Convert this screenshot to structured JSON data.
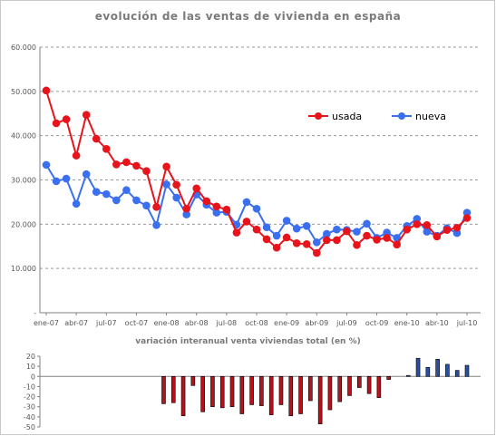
{
  "chart_data": [
    {
      "type": "line",
      "title": "evolución de las ventas de vivienda en españa",
      "xlabel": "",
      "ylabel": "",
      "ylim": [
        0,
        60000
      ],
      "ytick_values": [
        0,
        10000,
        20000,
        30000,
        40000,
        50000,
        60000
      ],
      "ytick_labels": [
        "-",
        "10.000",
        "20.000",
        "30.000",
        "40.000",
        "50.000",
        "60.000"
      ],
      "x_tick_labels": [
        "ene-07",
        "abr-07",
        "jul-07",
        "oct-07",
        "ene-08",
        "abr-08",
        "jul-08",
        "oct-08",
        "ene-09",
        "abr-09",
        "jul-09",
        "oct-09",
        "ene-10",
        "abr-10",
        "jul-10"
      ],
      "x_tick_every": 3,
      "grid": "horizontal-dashed",
      "legend_placement": "right",
      "colors": {
        "usada": "#e8141b",
        "nueva": "#3a6ff0"
      },
      "series": [
        {
          "name": "usada",
          "values": [
            50200,
            42800,
            43700,
            35500,
            44700,
            39300,
            37000,
            33500,
            34000,
            33200,
            32000,
            23900,
            33000,
            28900,
            23500,
            28100,
            25200,
            24000,
            23300,
            18100,
            20600,
            18800,
            16600,
            14700,
            17000,
            15700,
            15500,
            13500,
            16400,
            16400,
            18400,
            15300,
            17400,
            16500,
            16900,
            15400,
            18800,
            20000,
            19800,
            17200,
            18700,
            19200,
            21400
          ]
        },
        {
          "name": "nueva",
          "values": [
            33400,
            29700,
            30300,
            24600,
            31300,
            27300,
            26800,
            25400,
            27700,
            25400,
            24200,
            19800,
            29000,
            26000,
            22200,
            26700,
            24400,
            22600,
            22800,
            19900,
            25000,
            23500,
            19300,
            17400,
            20800,
            19000,
            19600,
            15900,
            17800,
            18800,
            18700,
            18300,
            20100,
            16900,
            18100,
            16900,
            19600,
            21200,
            18300,
            17400,
            19100,
            18000,
            22600
          ]
        }
      ]
    },
    {
      "type": "bar",
      "title": "variación interanual venta viviendas total (en %)",
      "ylim": [
        -50,
        20
      ],
      "ytick_values": [
        20,
        10,
        0,
        -10,
        -20,
        -30,
        -40,
        -50
      ],
      "ytick_labels": [
        "20",
        "10",
        "0",
        "-10",
        "-20",
        "-30",
        "-40",
        "-50"
      ],
      "colors": {
        "negative": "#b5121b",
        "positive": "#2b4fa0"
      },
      "values": [
        null,
        null,
        null,
        null,
        null,
        null,
        null,
        null,
        null,
        null,
        null,
        null,
        -27,
        -26,
        -39,
        -9,
        -35,
        -30,
        -31,
        -30,
        -37,
        -28,
        -29,
        -38,
        -28,
        -39,
        -37,
        -24,
        -47,
        -33,
        -25,
        -19,
        -11,
        -17,
        -21,
        -3,
        null,
        1,
        18,
        9,
        17,
        12,
        6,
        11
      ]
    }
  ]
}
